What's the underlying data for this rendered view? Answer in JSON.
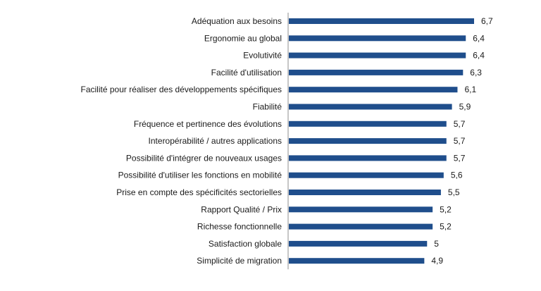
{
  "chart_data": {
    "type": "bar",
    "orientation": "horizontal",
    "categories": [
      "Adéquation aux besoins",
      "Ergonomie au global",
      "Evolutivité",
      "Facilité d'utilisation",
      "Facilité pour réaliser des développements spécifiques",
      "Fiabilité",
      "Fréquence et pertinence des évolutions",
      "Interopérabilité / autres applications",
      "Possibilité d'intégrer de nouveaux usages",
      "Possibilité d'utiliser les fonctions en mobilité",
      "Prise en compte des spécificités sectorielles",
      "Rapport Qualité / Prix",
      "Richesse fonctionnelle",
      "Satisfaction globale",
      "Simplicité de migration"
    ],
    "values": [
      6.7,
      6.4,
      6.4,
      6.3,
      6.1,
      5.9,
      5.7,
      5.7,
      5.7,
      5.6,
      5.5,
      5.2,
      5.2,
      5,
      4.9
    ],
    "value_labels": [
      "6,7",
      "6,4",
      "6,4",
      "6,3",
      "6,1",
      "5,9",
      "5,7",
      "5,7",
      "5,7",
      "5,6",
      "5,5",
      "5,2",
      "5,2",
      "5",
      "4,9"
    ],
    "xlim": [
      0,
      6.7
    ],
    "grid": false,
    "colors": {
      "bar": "#1f4e8c",
      "axis": "#8c8c8c",
      "text": "#1a1a1a"
    }
  }
}
